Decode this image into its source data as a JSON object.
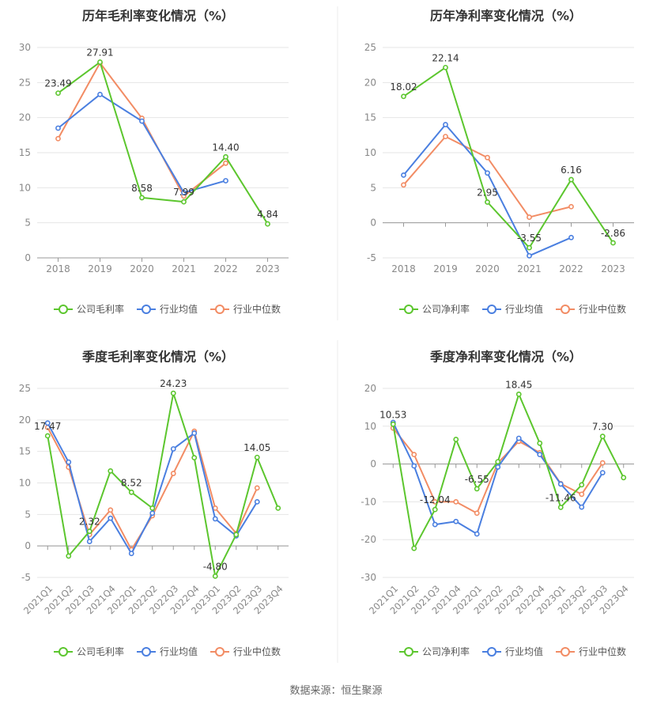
{
  "source_text": "数据来源：恒生聚源",
  "colors": {
    "company": "#5cc62e",
    "avg": "#4a7fe0",
    "median": "#f28c64"
  },
  "chart_data": [
    {
      "type": "line",
      "title": "历年毛利率变化情况（%）",
      "categories": [
        "2018",
        "2019",
        "2020",
        "2021",
        "2022",
        "2023"
      ],
      "ylim": [
        0,
        30
      ],
      "yticks": [
        0,
        5,
        10,
        15,
        20,
        25,
        30
      ],
      "grid": true,
      "legend_position": "bottom",
      "series": [
        {
          "name": "公司毛利率",
          "key": "company",
          "values": [
            23.49,
            27.91,
            8.58,
            7.99,
            14.4,
            4.84
          ]
        },
        {
          "name": "行业均值",
          "key": "avg",
          "values": [
            18.5,
            23.3,
            19.5,
            9.3,
            11.0,
            null
          ]
        },
        {
          "name": "行业中位数",
          "key": "median",
          "values": [
            17.0,
            27.8,
            19.9,
            8.8,
            13.5,
            null
          ]
        }
      ],
      "data_labels": [
        "23.49",
        "27.91",
        "8.58",
        "7.99",
        "14.40",
        "4.84"
      ]
    },
    {
      "type": "line",
      "title": "历年净利率变化情况（%）",
      "categories": [
        "2018",
        "2019",
        "2020",
        "2021",
        "2022",
        "2023"
      ],
      "ylim": [
        -5,
        25
      ],
      "yticks": [
        -5,
        0,
        5,
        10,
        15,
        20,
        25
      ],
      "grid": true,
      "legend_position": "bottom",
      "series": [
        {
          "name": "公司净利率",
          "key": "company",
          "values": [
            18.02,
            22.14,
            2.95,
            -3.55,
            6.16,
            -2.86
          ]
        },
        {
          "name": "行业均值",
          "key": "avg",
          "values": [
            6.8,
            14.0,
            7.1,
            -4.7,
            -2.1,
            null
          ]
        },
        {
          "name": "行业中位数",
          "key": "median",
          "values": [
            5.4,
            12.3,
            9.3,
            0.8,
            2.3,
            null
          ]
        }
      ],
      "data_labels": [
        "18.02",
        "22.14",
        "2.95",
        "-3.55",
        "6.16",
        "-2.86"
      ]
    },
    {
      "type": "line",
      "title": "季度毛利率变化情况（%）",
      "categories": [
        "2021Q1",
        "2021Q2",
        "2021Q3",
        "2021Q4",
        "2022Q1",
        "2022Q2",
        "2022Q3",
        "2022Q4",
        "2023Q1",
        "2023Q2",
        "2023Q3",
        "2023Q4"
      ],
      "ylim": [
        -5,
        25
      ],
      "yticks": [
        -5,
        0,
        5,
        10,
        15,
        20,
        25
      ],
      "grid": true,
      "legend_position": "bottom",
      "series": [
        {
          "name": "公司毛利率",
          "key": "company",
          "values": [
            17.47,
            -1.6,
            2.32,
            11.9,
            8.52,
            6.0,
            24.23,
            14.0,
            -4.8,
            1.8,
            14.05,
            6.0
          ]
        },
        {
          "name": "行业均值",
          "key": "avg",
          "values": [
            19.5,
            13.3,
            0.7,
            4.4,
            -1.2,
            5.2,
            15.4,
            17.9,
            4.3,
            1.6,
            7.0,
            null
          ]
        },
        {
          "name": "行业中位数",
          "key": "median",
          "values": [
            18.8,
            12.5,
            1.8,
            5.7,
            -0.6,
            4.8,
            11.5,
            18.2,
            6.0,
            2.0,
            9.2,
            null
          ]
        }
      ],
      "data_labels": [
        "17.47",
        "",
        "2.32",
        "",
        "8.52",
        "",
        "24.23",
        "",
        "-4.80",
        "",
        "14.05",
        ""
      ]
    },
    {
      "type": "line",
      "title": "季度净利率变化情况（%）",
      "categories": [
        "2021Q1",
        "2021Q2",
        "2021Q3",
        "2021Q4",
        "2022Q1",
        "2022Q2",
        "2022Q3",
        "2022Q4",
        "2023Q1",
        "2023Q2",
        "2023Q3",
        "2023Q4"
      ],
      "ylim": [
        -30,
        20
      ],
      "yticks": [
        -30,
        -20,
        -10,
        0,
        10,
        20
      ],
      "grid": true,
      "legend_position": "bottom",
      "series": [
        {
          "name": "公司净利率",
          "key": "company",
          "values": [
            10.53,
            -22.3,
            -12.04,
            6.5,
            -6.55,
            0.6,
            18.45,
            5.5,
            -11.46,
            -5.5,
            7.3,
            -3.6
          ]
        },
        {
          "name": "行业均值",
          "key": "avg",
          "values": [
            11.0,
            -0.5,
            -16.0,
            -15.2,
            -18.5,
            -0.8,
            6.8,
            2.5,
            -5.3,
            -11.4,
            -2.3,
            null
          ]
        },
        {
          "name": "行业中位数",
          "key": "median",
          "values": [
            9.5,
            2.5,
            -10.0,
            -10.0,
            -13.0,
            0.3,
            6.0,
            3.0,
            -5.2,
            -8.0,
            0.3,
            null
          ]
        }
      ],
      "data_labels": [
        "10.53",
        "",
        "-12.04",
        "",
        "-6.55",
        "",
        "18.45",
        "",
        "-11.46",
        "",
        "7.30",
        ""
      ]
    }
  ]
}
